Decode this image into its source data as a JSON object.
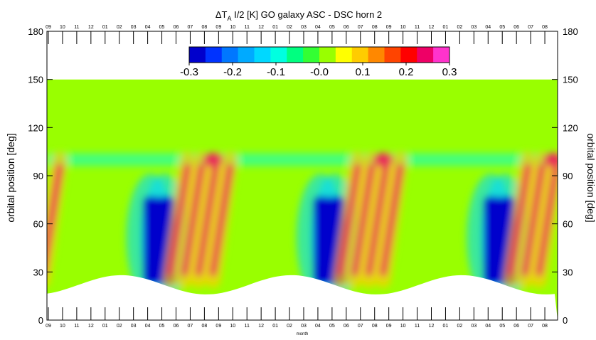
{
  "chart_data": {
    "type": "heatmap",
    "title_prefix": "ΔT",
    "title_sub": "A",
    "title_rest": " I/2 [K] GO galaxy   ASC - DSC horn 2",
    "ylabel_left": "orbital position [deg]",
    "ylabel_right": "orbital position [deg]",
    "xlabel": "month",
    "ylim": [
      0,
      180
    ],
    "yticks": [
      0,
      30,
      60,
      90,
      120,
      150,
      180
    ],
    "month_ticks_top": [
      "09",
      "10",
      "11",
      "12",
      "01",
      "02",
      "03",
      "04",
      "05",
      "06",
      "07",
      "08",
      "09",
      "10",
      "11",
      "12",
      "01",
      "02",
      "03",
      "04",
      "05",
      "06",
      "07",
      "08",
      "09",
      "10",
      "11",
      "12",
      "01",
      "02",
      "03",
      "04",
      "05",
      "06",
      "07",
      "08"
    ],
    "month_ticks_bottom": [
      "09",
      "10",
      "11",
      "12",
      "01",
      "02",
      "03",
      "04",
      "05",
      "06",
      "07",
      "08",
      "09",
      "10",
      "11",
      "12",
      "01",
      "02",
      "03",
      "04",
      "05",
      "06",
      "07",
      "08",
      "09",
      "10",
      "11",
      "12",
      "01",
      "02",
      "03",
      "04",
      "05",
      "06",
      "07",
      "08"
    ],
    "colorbar": {
      "range": [
        -0.3,
        0.3
      ],
      "tick_labels": [
        "-0.3",
        "-0.2",
        "-0.1",
        "-0.0",
        "0.1",
        "0.2",
        "0.3"
      ],
      "colors": [
        "#0000cc",
        "#0033ff",
        "#0077ff",
        "#00aaff",
        "#00d8ff",
        "#00ffe0",
        "#00ff80",
        "#33ff33",
        "#99ff00",
        "#ffff00",
        "#ffcc00",
        "#ff8800",
        "#ff4400",
        "#ff0000",
        "#ee0066",
        "#ff33cc"
      ]
    },
    "data_top_deg": 150,
    "years": 3,
    "features": {
      "anomaly_low_months": [
        "04",
        "05"
      ],
      "anomaly_low_range_deg": [
        18,
        85
      ],
      "anomaly_low_value": -0.3,
      "anomaly_high_months": [
        "06",
        "07",
        "08",
        "09"
      ],
      "anomaly_high_range_deg": [
        25,
        115
      ],
      "anomaly_high_value": 0.25,
      "band_deg": 100,
      "background_value": 0.0
    }
  }
}
